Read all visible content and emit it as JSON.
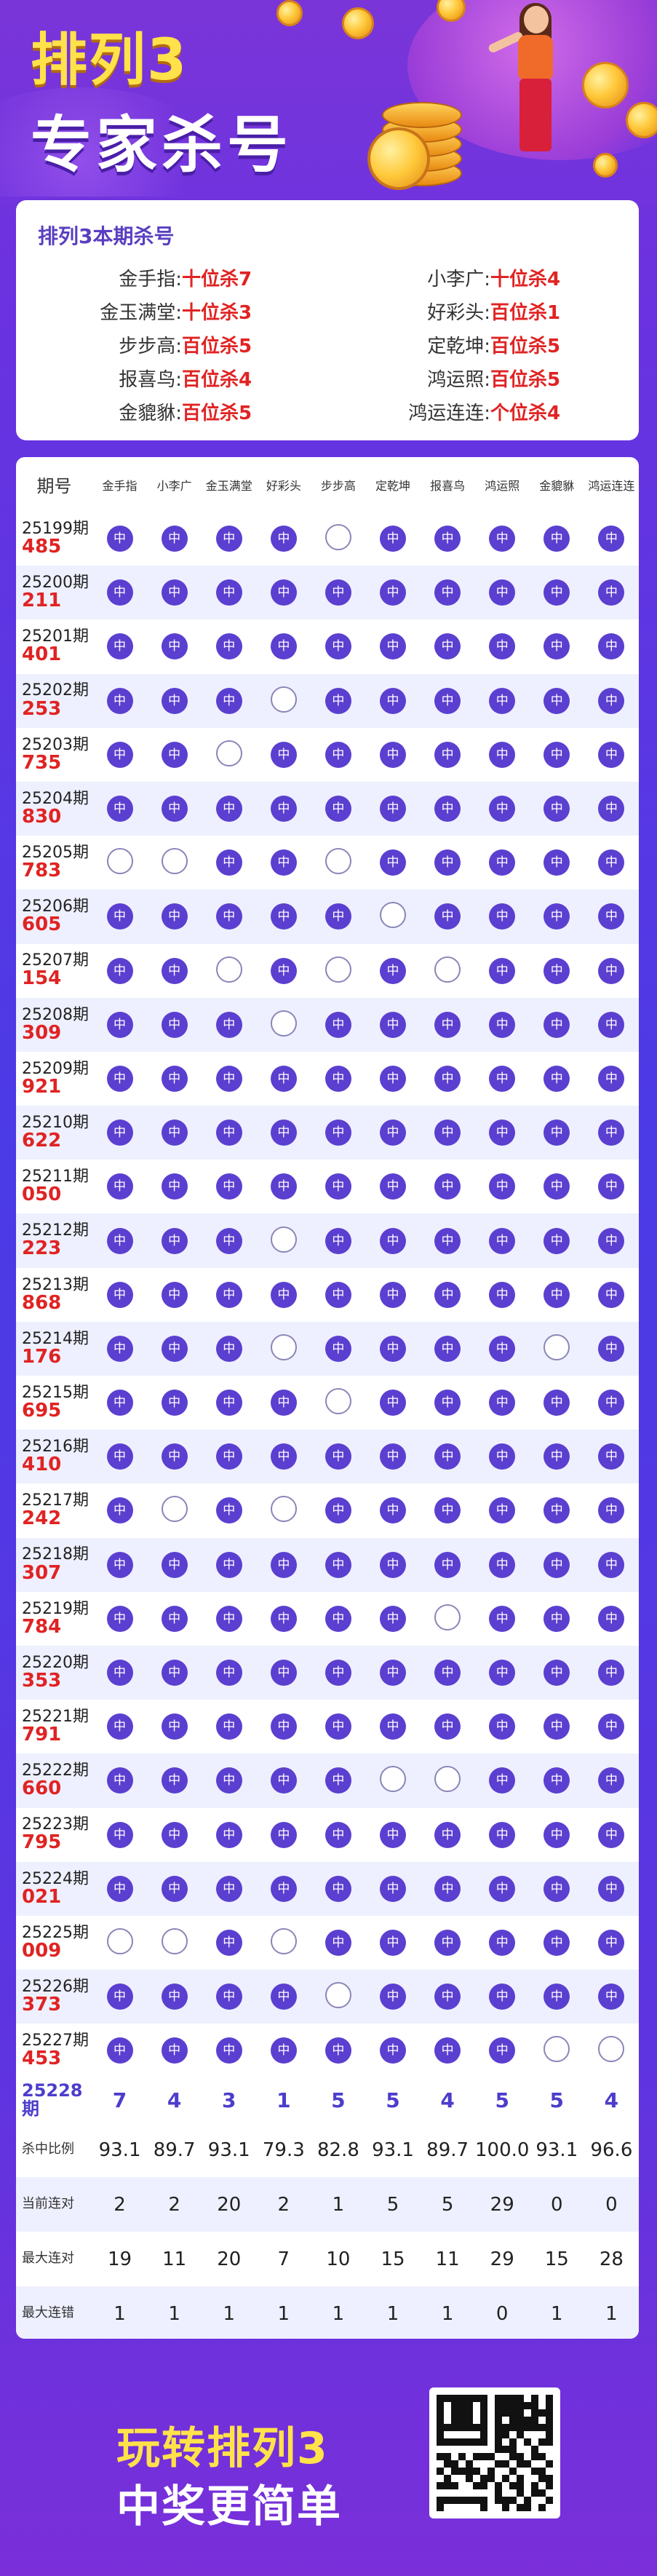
{
  "hero": {
    "title_line1": "排列3",
    "title_line2": "专家杀号"
  },
  "kill_card": {
    "title": "排列3本期杀号",
    "left": [
      {
        "name": "金手指:",
        "value": "十位杀7"
      },
      {
        "name": "金玉满堂:",
        "value": "十位杀3"
      },
      {
        "name": "步步高:",
        "value": "百位杀5"
      },
      {
        "name": "报喜鸟:",
        "value": "百位杀4"
      },
      {
        "name": "金貔貅:",
        "value": "百位杀5"
      }
    ],
    "right": [
      {
        "name": "小李广:",
        "value": "十位杀4"
      },
      {
        "name": "好彩头:",
        "value": "百位杀1"
      },
      {
        "name": "定乾坤:",
        "value": "百位杀5"
      },
      {
        "name": "鸿运照:",
        "value": "百位杀5"
      },
      {
        "name": "鸿运连连:",
        "value": "个位杀4"
      }
    ]
  },
  "table": {
    "header_period": "期号",
    "experts": [
      "金手指",
      "小李广",
      "金玉满堂",
      "好彩头",
      "步步高",
      "定乾坤",
      "报喜鸟",
      "鸿运照",
      "金貔貅",
      "鸿运连连"
    ],
    "hit_mark": "中",
    "rows": [
      {
        "period": "25199期",
        "num": "485",
        "r": "HHHHMHHHHH"
      },
      {
        "period": "25200期",
        "num": "211",
        "r": "HHHHHHHHHH"
      },
      {
        "period": "25201期",
        "num": "401",
        "r": "HHHHHHHHHH"
      },
      {
        "period": "25202期",
        "num": "253",
        "r": "HHHMHHHHHH"
      },
      {
        "period": "25203期",
        "num": "735",
        "r": "HHMHHHHHHH"
      },
      {
        "period": "25204期",
        "num": "830",
        "r": "HHHHHHHHHH"
      },
      {
        "period": "25205期",
        "num": "783",
        "r": "MMHHMHHHHH"
      },
      {
        "period": "25206期",
        "num": "605",
        "r": "HHHHHMHHHH"
      },
      {
        "period": "25207期",
        "num": "154",
        "r": "HHMHMHMHHH"
      },
      {
        "period": "25208期",
        "num": "309",
        "r": "HHHMHHHHHH"
      },
      {
        "period": "25209期",
        "num": "921",
        "r": "HHHHHHHHHH"
      },
      {
        "period": "25210期",
        "num": "622",
        "r": "HHHHHHHHHH"
      },
      {
        "period": "25211期",
        "num": "050",
        "r": "HHHHHHHHHH"
      },
      {
        "period": "25212期",
        "num": "223",
        "r": "HHHMHHHHHH"
      },
      {
        "period": "25213期",
        "num": "868",
        "r": "HHHHHHHHHH"
      },
      {
        "period": "25214期",
        "num": "176",
        "r": "HHHMHHHHMH"
      },
      {
        "period": "25215期",
        "num": "695",
        "r": "HHHHMHHHHH"
      },
      {
        "period": "25216期",
        "num": "410",
        "r": "HHHHHHHHHH"
      },
      {
        "period": "25217期",
        "num": "242",
        "r": "HMHMHHHHHH"
      },
      {
        "period": "25218期",
        "num": "307",
        "r": "HHHHHHHHHH"
      },
      {
        "period": "25219期",
        "num": "784",
        "r": "HHHHHHMHHH"
      },
      {
        "period": "25220期",
        "num": "353",
        "r": "HHHHHHHHHH"
      },
      {
        "period": "25221期",
        "num": "791",
        "r": "HHHHHHHHHH"
      },
      {
        "period": "25222期",
        "num": "660",
        "r": "HHHHHMMHHH"
      },
      {
        "period": "25223期",
        "num": "795",
        "r": "HHHHHHHHHH"
      },
      {
        "period": "25224期",
        "num": "021",
        "r": "HHHHHHHHHH"
      },
      {
        "period": "25225期",
        "num": "009",
        "r": "MMHMHHHHHH"
      },
      {
        "period": "25226期",
        "num": "373",
        "r": "HHHHMHHHHH"
      },
      {
        "period": "25227期",
        "num": "453",
        "r": "HHHHHHHHMM"
      }
    ],
    "next": {
      "period": "25228期",
      "values": [
        "7",
        "4",
        "3",
        "1",
        "5",
        "5",
        "4",
        "5",
        "5",
        "4"
      ]
    },
    "stats": [
      {
        "label": "杀中比例",
        "values": [
          "93.1",
          "89.7",
          "93.1",
          "79.3",
          "82.8",
          "93.1",
          "89.7",
          "100.0",
          "93.1",
          "96.6"
        ]
      },
      {
        "label": "当前连对",
        "values": [
          "2",
          "2",
          "20",
          "2",
          "1",
          "5",
          "5",
          "29",
          "0",
          "0"
        ]
      },
      {
        "label": "最大连对",
        "values": [
          "19",
          "11",
          "20",
          "7",
          "10",
          "15",
          "11",
          "29",
          "15",
          "28"
        ]
      },
      {
        "label": "最大连错",
        "values": [
          "1",
          "1",
          "1",
          "1",
          "1",
          "1",
          "1",
          "0",
          "1",
          "1"
        ]
      }
    ]
  },
  "footer": {
    "line1": "玩转排列3",
    "line2": "中奖更简单"
  },
  "colors": {
    "accent_purple": "#5b3fd0",
    "kill_red": "#e02323",
    "title_yellow": "#ffe24a"
  }
}
